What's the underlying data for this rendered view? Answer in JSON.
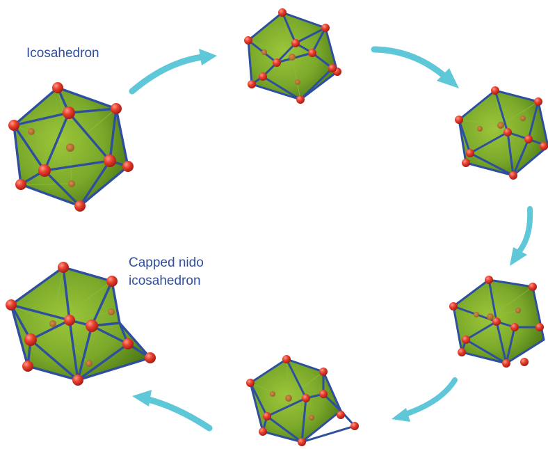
{
  "labels": {
    "start": "Icosahedron",
    "end_line1": "Capped nido",
    "end_line2": "icosahedron"
  },
  "colors": {
    "face_light": "#9cc63a",
    "face_dark": "#4e7a16",
    "edge": "#2e4f9e",
    "atom_light": "#ff7a66",
    "atom_dark": "#c7231b",
    "arrow": "#5ec7d8",
    "text": "#2f4f9e"
  },
  "structures": [
    {
      "name": "icosahedron"
    },
    {
      "name": "intermediate-1"
    },
    {
      "name": "intermediate-2"
    },
    {
      "name": "intermediate-3"
    },
    {
      "name": "intermediate-4"
    },
    {
      "name": "capped-nido-icosahedron"
    }
  ]
}
